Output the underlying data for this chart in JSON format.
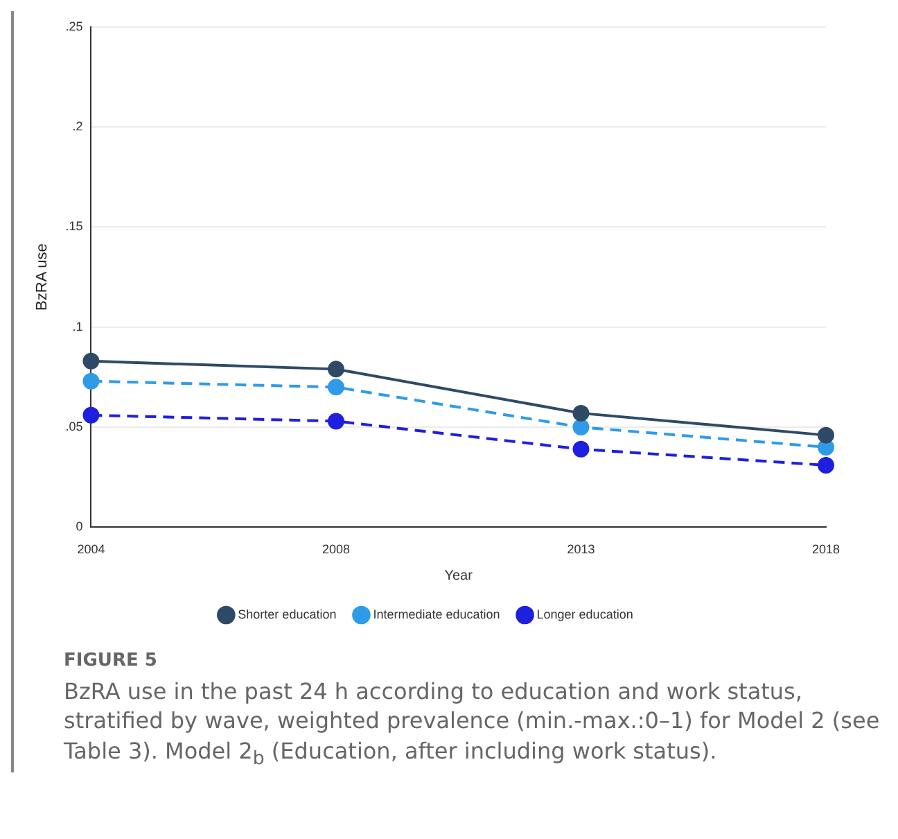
{
  "chart_data": {
    "type": "line",
    "xlabel": "Year",
    "ylabel": "BzRA use",
    "categories": [
      "2004",
      "2008",
      "2013",
      "2018"
    ],
    "series": [
      {
        "name": "Shorter education",
        "color": "#2e4a66",
        "values": [
          0.083,
          0.079,
          0.057,
          0.046
        ],
        "line_style": "solid"
      },
      {
        "name": "Intermediate education",
        "color": "#2f9be8",
        "values": [
          0.073,
          0.07,
          0.05,
          0.04
        ],
        "line_style": "dashed"
      },
      {
        "name": "Longer education",
        "color": "#1f1fe0",
        "values": [
          0.056,
          0.053,
          0.039,
          0.031
        ],
        "line_style": "dashed"
      }
    ],
    "ylim": [
      0,
      0.25
    ],
    "yticks": [
      {
        "value": 0,
        "label": "0"
      },
      {
        "value": 0.05,
        "label": ".05"
      },
      {
        "value": 0.1,
        "label": ".1"
      },
      {
        "value": 0.15,
        "label": ".15"
      },
      {
        "value": 0.2,
        "label": ".2"
      },
      {
        "value": 0.25,
        "label": ".25"
      }
    ],
    "grid": "y",
    "legend": "bottom",
    "marker": "circle",
    "annotations": [
      "FIGURE 5",
      "BzRA use in the past 24 h according to education and work status, stratified by wave, weighted prevalence (min.-max.:0–1) for Model 2 (see Table 3). Model 2$_{b}$ (Education, after including work status)."
    ]
  }
}
